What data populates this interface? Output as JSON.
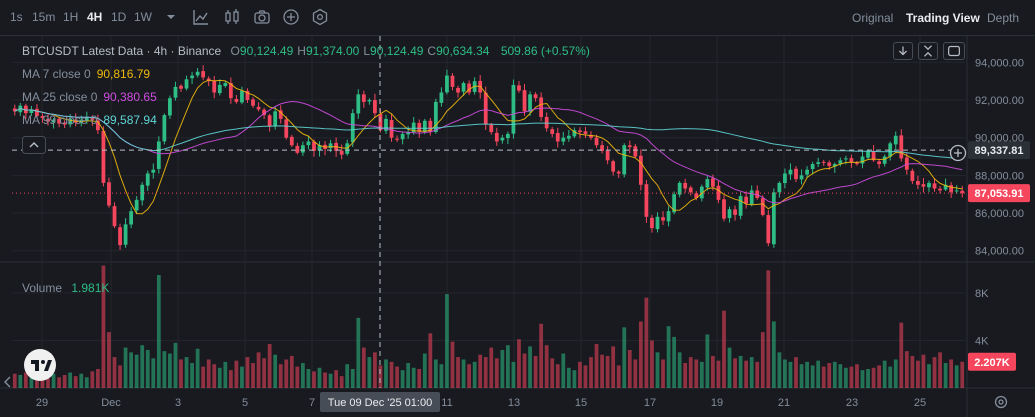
{
  "toolbar": {
    "intervals": [
      "1s",
      "15m",
      "1H",
      "4H",
      "1D",
      "1W"
    ],
    "active_interval": "4H",
    "views": [
      "Original",
      "Trading View",
      "Depth"
    ],
    "active_view": "Trading View"
  },
  "legend": {
    "title": "BTCUSDT Latest Data · 4h · Binance",
    "ohlc": [
      {
        "k": "O",
        "v": "90,124.49"
      },
      {
        "k": "H",
        "v": "91,374.00"
      },
      {
        "k": "L",
        "v": "90,124.49"
      },
      {
        "k": "C",
        "v": "90,634.34"
      }
    ],
    "change": "509.86 (+0.57%)",
    "ma": [
      {
        "label": "MA 7 close 0",
        "value": "90,816.79",
        "color": "#f0b90b"
      },
      {
        "label": "MA 25 close 0",
        "value": "90,380.65",
        "color": "#d04de0"
      },
      {
        "label": "MA 99 close 0",
        "value": "89,587.94",
        "color": "#5fd5d5"
      }
    ],
    "volume_label": "Volume",
    "volume_value": "1.981K"
  },
  "colors": {
    "up": "#2ebd85",
    "down": "#f6465d",
    "background": "#181a20",
    "grid": "#23262d"
  },
  "chart_data": {
    "type": "candlestick",
    "symbol": "BTCUSDT",
    "interval": "4h",
    "exchange": "Binance",
    "price_axis": {
      "ticks": [
        "84,000.00",
        "86,000.00",
        "88,000.00",
        "90,000.00",
        "92,000.00",
        "94,000.00"
      ],
      "ylim": [
        83400,
        95400
      ]
    },
    "volume_axis": {
      "ticks": [
        "4K",
        "8K"
      ],
      "ylim": [
        0,
        10600
      ]
    },
    "x_ticks": [
      "29",
      "Dec",
      "3",
      "5",
      "7",
      "11",
      "13",
      "15",
      "17",
      "19",
      "21",
      "23",
      "25"
    ],
    "crosshair": {
      "price": "89,337.81",
      "time": "Tue 09 Dec '25 01:00"
    },
    "last_price": "87,053.91",
    "last_volume": "2.207K",
    "closes": [
      91400,
      91700,
      91300,
      91500,
      91150,
      91050,
      90850,
      90950,
      90750,
      90700,
      91000,
      90800,
      90950,
      91100,
      90950,
      90400,
      87600,
      86400,
      85300,
      84300,
      85400,
      86100,
      86700,
      87500,
      88100,
      88300,
      89800,
      91200,
      92100,
      92700,
      92600,
      93100,
      93300,
      93500,
      93200,
      93000,
      92400,
      92800,
      92900,
      92100,
      91900,
      92500,
      92000,
      91700,
      91500,
      91200,
      90600,
      91400,
      91000,
      90000,
      89600,
      89200,
      89600,
      89800,
      89300,
      89600,
      89400,
      89700,
      89300,
      89100,
      89700,
      91300,
      92300,
      91900,
      92000,
      91300,
      90400,
      91000,
      90000,
      89900,
      90200,
      90300,
      90800,
      90300,
      90900,
      90300,
      91900,
      92400,
      93300,
      92700,
      92400,
      92900,
      92400,
      93000,
      92400,
      90700,
      90300,
      89800,
      90000,
      90200,
      92800,
      92500,
      91400,
      92300,
      92100,
      91100,
      90500,
      90200,
      89800,
      90000,
      90100,
      90400,
      90300,
      90200,
      90000,
      89600,
      89300,
      88800,
      88200,
      88100,
      89600,
      89500,
      89000,
      87500,
      85800,
      85200,
      85800,
      85600,
      86100,
      87000,
      87600,
      87300,
      87100,
      86800,
      87400,
      87800,
      87400,
      86700,
      85700,
      86200,
      85900,
      86900,
      86500,
      87200,
      86800,
      85900,
      84400,
      87100,
      87600,
      88100,
      88300,
      87800,
      88000,
      88300,
      88600,
      88700,
      88700,
      88500,
      88600,
      88800,
      88900,
      88700,
      88600,
      89000,
      89300,
      88800,
      88600,
      89000,
      89700,
      90100,
      88900,
      88300,
      87700,
      87500,
      87400,
      87600,
      87300,
      87200,
      87500,
      87100,
      87200,
      87053.91
    ],
    "volumes": [
      1200,
      1100,
      1300,
      900,
      1000,
      1100,
      800,
      1200,
      900,
      1100,
      1300,
      1000,
      1200,
      900,
      1400,
      1600,
      10300,
      4700,
      2600,
      1900,
      3400,
      3000,
      2800,
      3600,
      3200,
      2500,
      9500,
      3100,
      2900,
      3800,
      2400,
      2600,
      2100,
      3300,
      1800,
      2400,
      2000,
      1700,
      2200,
      1500,
      2300,
      1800,
      2600,
      2100,
      3000,
      2500,
      3700,
      2800,
      2000,
      2400,
      2700,
      1800,
      2100,
      1600,
      1400,
      1700,
      1300,
      1200,
      1500,
      1000,
      2000,
      1600,
      5900,
      3400,
      2600,
      3000,
      1900,
      2400,
      2200,
      1800,
      1500,
      2100,
      1700,
      1600,
      2900,
      4600,
      2400,
      2000,
      7900,
      3900,
      2600,
      2400,
      2000,
      2200,
      2800,
      2600,
      3400,
      2500,
      3200,
      3600,
      2200,
      4100,
      2900,
      3500,
      2700,
      5400,
      3600,
      2500,
      2000,
      2900,
      1700,
      1500,
      2200,
      1900,
      2600,
      3700,
      2800,
      2700,
      3500,
      1900,
      5100,
      3200,
      2400,
      5600,
      7600,
      4000,
      3000,
      2400,
      5200,
      4300,
      3000,
      2100,
      2600,
      2400,
      2200,
      4500,
      2700,
      2300,
      6500,
      3400,
      2500,
      2700,
      2300,
      2600,
      2200,
      4700,
      9900,
      5600,
      3000,
      2400,
      2200,
      2600,
      2000,
      2200,
      1900,
      2300,
      1800,
      2100,
      2200,
      2000,
      1700,
      1800,
      2000,
      1500,
      1600,
      1700,
      1900,
      2300,
      1800,
      2400,
      5500,
      3100,
      2700,
      2300,
      2800,
      2000,
      2600,
      3000,
      2100,
      2400,
      1900,
      2207
    ]
  }
}
